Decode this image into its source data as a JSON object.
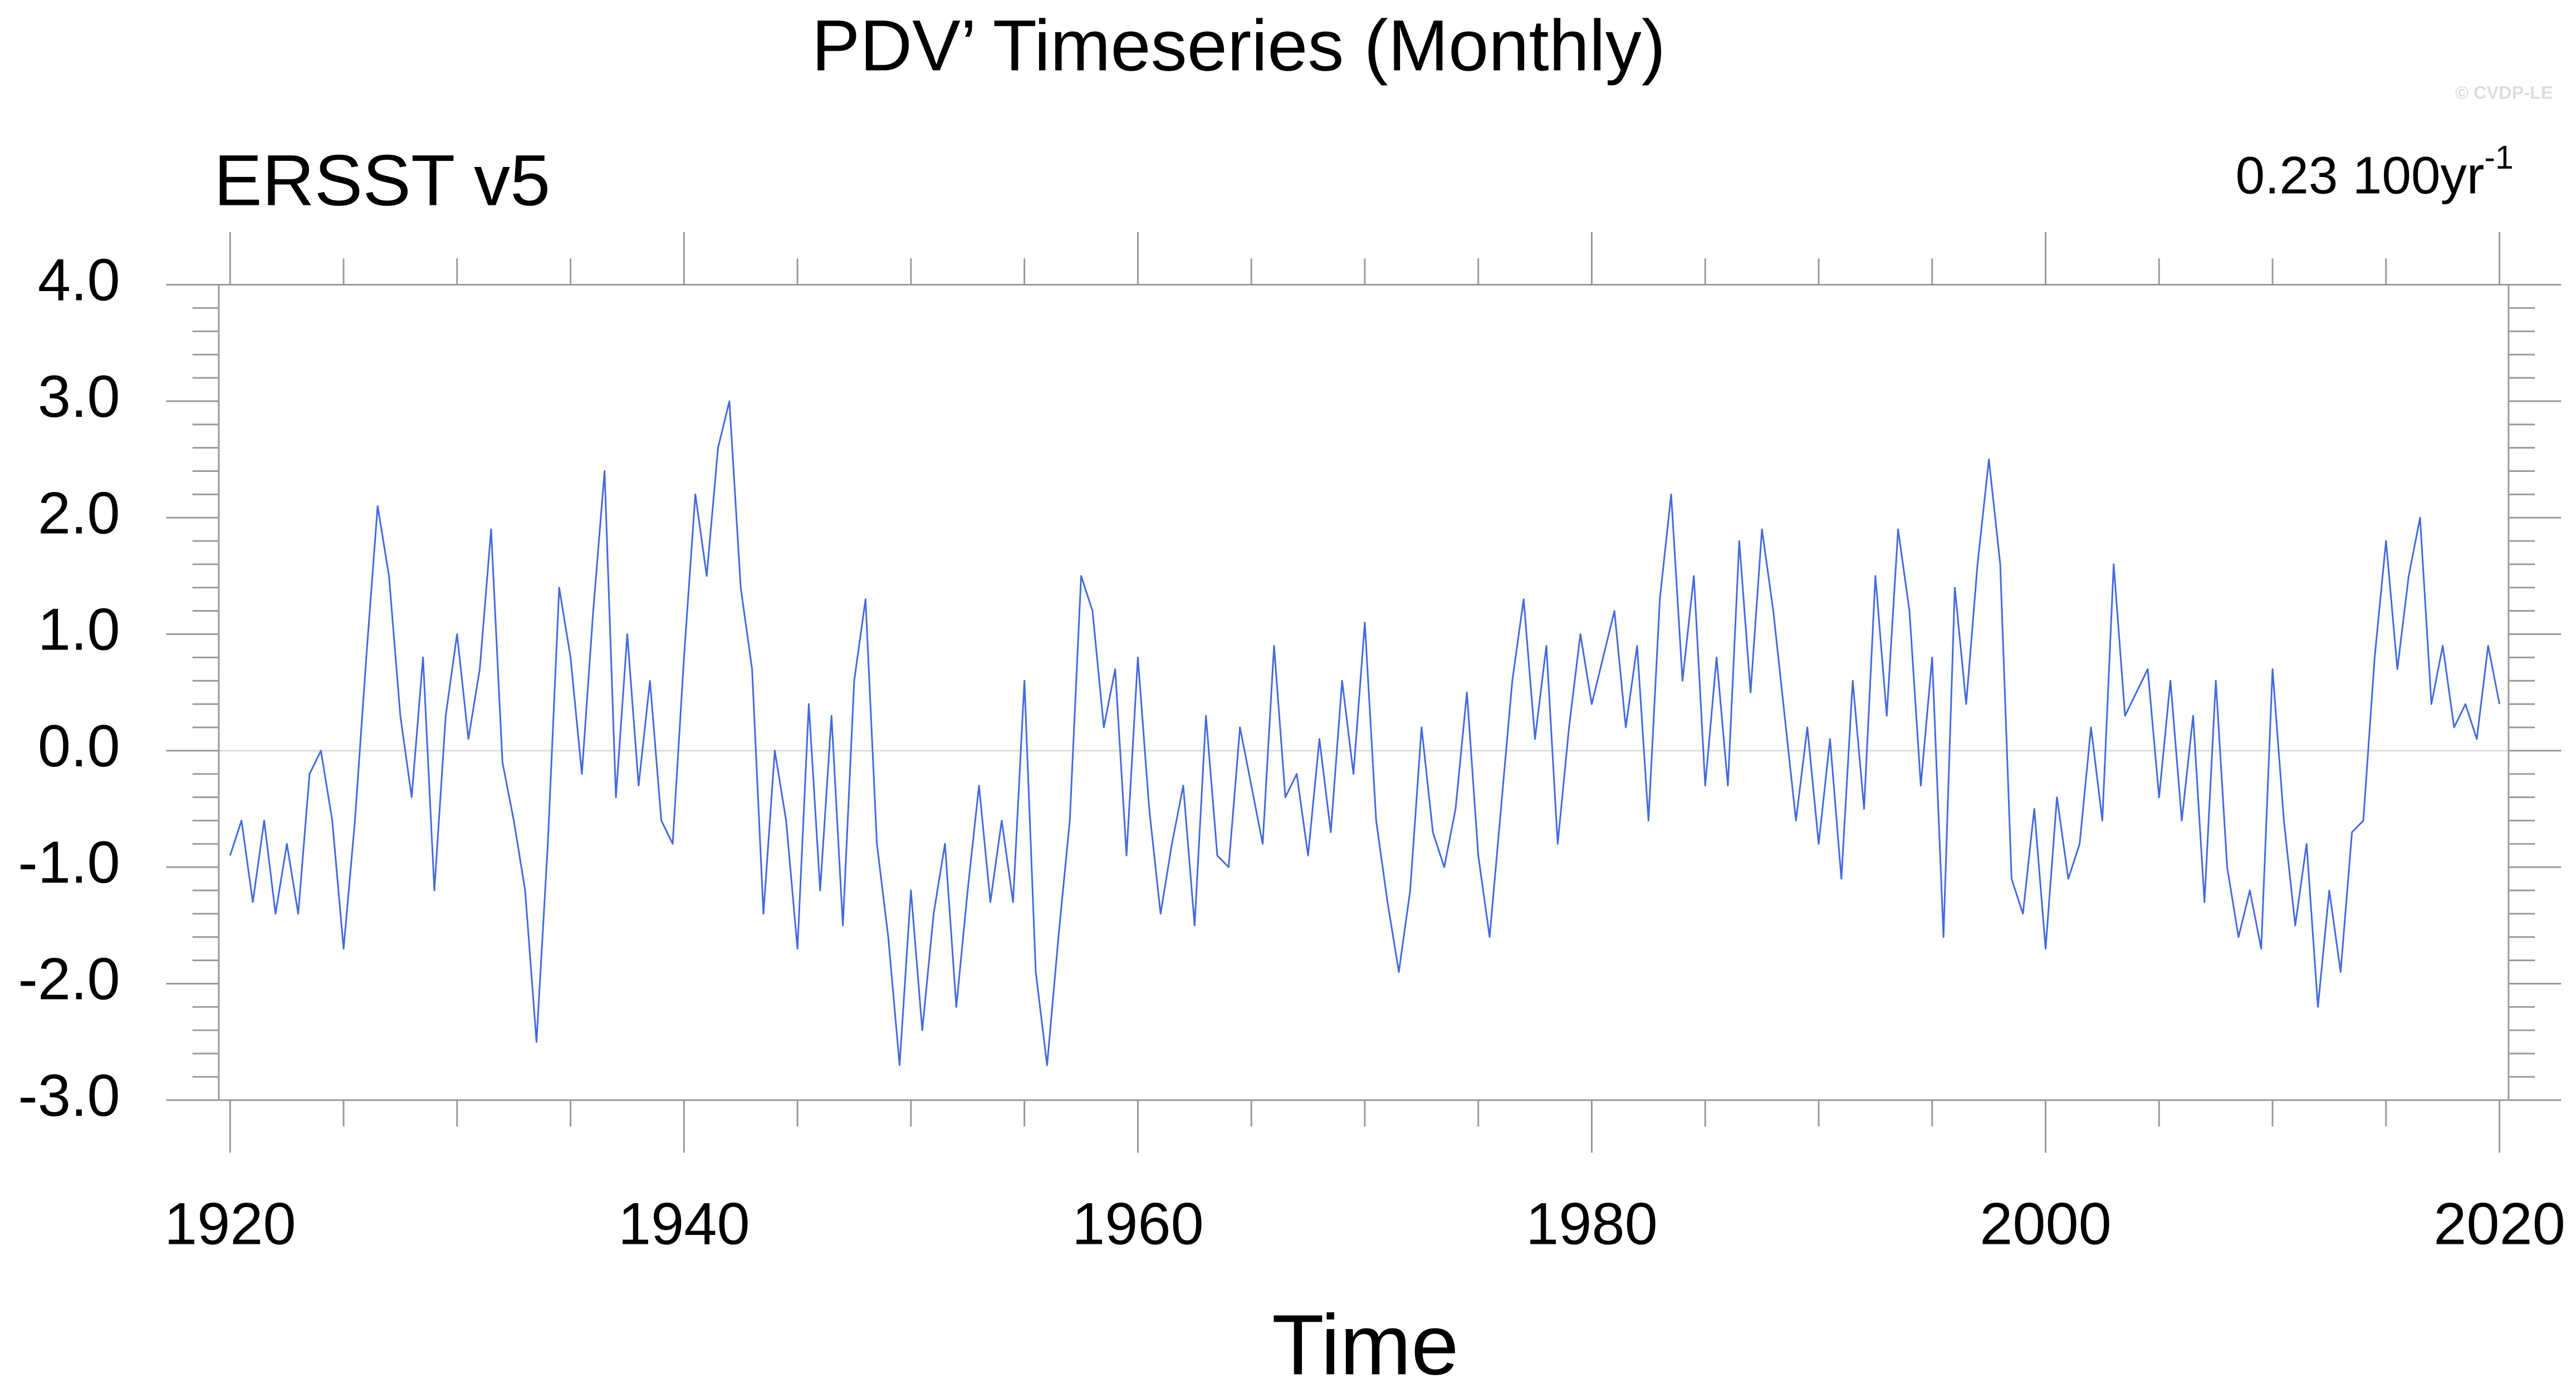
{
  "chart_data": {
    "type": "line",
    "title": "PDV’ Timeseries (Monthly)",
    "subtitle": "ERSST v5",
    "trend_label": "0.23 100yr",
    "trend_label_superscript": "-1",
    "copyright": "© CVDP-LE",
    "xlabel": "Time",
    "color": "#4169e1",
    "zero_line": true,
    "xlim": [
      1919.5,
      2020.4
    ],
    "ylim": [
      -3,
      4
    ],
    "xticks": [
      1920,
      1940,
      1960,
      1980,
      2000,
      2020
    ],
    "x_minor_ticks": [
      1925,
      1930,
      1935,
      1945,
      1950,
      1955,
      1965,
      1970,
      1975,
      1985,
      1990,
      1995,
      2005,
      2010,
      2015
    ],
    "yticks": [
      {
        "value": -3,
        "label": "-3.0"
      },
      {
        "value": -2,
        "label": "-2.0"
      },
      {
        "value": -1,
        "label": "-1.0"
      },
      {
        "value": 0,
        "label": "0.0"
      },
      {
        "value": 1,
        "label": "1.0"
      },
      {
        "value": 2,
        "label": "2.0"
      },
      {
        "value": 3,
        "label": "3.0"
      },
      {
        "value": 4,
        "label": "4.0"
      }
    ],
    "y_minor_ticks": [
      -2.8,
      -2.6,
      -2.4,
      -2.2,
      -1.8,
      -1.6,
      -1.4,
      -1.2,
      -0.8,
      -0.6,
      -0.4,
      -0.2,
      0.2,
      0.4,
      0.6,
      0.8,
      1.2,
      1.4,
      1.6,
      1.8,
      2.2,
      2.4,
      2.6,
      2.8,
      3.2,
      3.4,
      3.6,
      3.8
    ],
    "x": [
      1920,
      1920.5,
      1921,
      1921.5,
      1922,
      1922.5,
      1923,
      1923.5,
      1924,
      1924.5,
      1925,
      1925.5,
      1926,
      1926.5,
      1927,
      1927.5,
      1928,
      1928.5,
      1929,
      1929.5,
      1930,
      1930.5,
      1931,
      1931.5,
      1932,
      1932.5,
      1933,
      1933.5,
      1934,
      1934.5,
      1935,
      1935.5,
      1936,
      1936.5,
      1937,
      1937.5,
      1938,
      1938.5,
      1939,
      1939.5,
      1940,
      1940.5,
      1941,
      1941.5,
      1942,
      1942.5,
      1943,
      1943.5,
      1944,
      1944.5,
      1945,
      1945.5,
      1946,
      1946.5,
      1947,
      1947.5,
      1948,
      1948.5,
      1949,
      1949.5,
      1950,
      1950.5,
      1951,
      1951.5,
      1952,
      1952.5,
      1953,
      1953.5,
      1954,
      1954.5,
      1955,
      1955.5,
      1956,
      1956.5,
      1957,
      1957.5,
      1958,
      1958.5,
      1959,
      1959.5,
      1960,
      1960.5,
      1961,
      1961.5,
      1962,
      1962.5,
      1963,
      1963.5,
      1964,
      1964.5,
      1965,
      1965.5,
      1966,
      1966.5,
      1967,
      1967.5,
      1968,
      1968.5,
      1969,
      1969.5,
      1970,
      1970.5,
      1971,
      1971.5,
      1972,
      1972.5,
      1973,
      1973.5,
      1974,
      1974.5,
      1975,
      1975.5,
      1976,
      1976.5,
      1977,
      1977.5,
      1978,
      1978.5,
      1979,
      1979.5,
      1980,
      1980.5,
      1981,
      1981.5,
      1982,
      1982.5,
      1983,
      1983.5,
      1984,
      1984.5,
      1985,
      1985.5,
      1986,
      1986.5,
      1987,
      1987.5,
      1988,
      1988.5,
      1989,
      1989.5,
      1990,
      1990.5,
      1991,
      1991.5,
      1992,
      1992.5,
      1993,
      1993.5,
      1994,
      1994.5,
      1995,
      1995.5,
      1996,
      1996.5,
      1997,
      1997.5,
      1998,
      1998.5,
      1999,
      1999.5,
      2000,
      2000.5,
      2001,
      2001.5,
      2002,
      2002.5,
      2003,
      2003.5,
      2004,
      2004.5,
      2005,
      2005.5,
      2006,
      2006.5,
      2007,
      2007.5,
      2008,
      2008.5,
      2009,
      2009.5,
      2010,
      2010.5,
      2011,
      2011.5,
      2012,
      2012.5,
      2013,
      2013.5,
      2014,
      2014.5,
      2015,
      2015.5,
      2016,
      2016.5,
      2017,
      2017.5,
      2018,
      2018.5,
      2019,
      2019.5,
      2020
    ],
    "values": [
      -0.9,
      -0.6,
      -1.3,
      -0.6,
      -1.4,
      -0.8,
      -1.4,
      -0.2,
      0.0,
      -0.6,
      -1.7,
      -0.6,
      0.8,
      2.1,
      1.5,
      0.3,
      -0.4,
      0.8,
      -1.2,
      0.3,
      1.0,
      0.1,
      0.7,
      1.9,
      -0.1,
      -0.6,
      -1.2,
      -2.5,
      -0.8,
      1.4,
      0.8,
      -0.2,
      1.2,
      2.4,
      -0.4,
      1.0,
      -0.3,
      0.6,
      -0.6,
      -0.8,
      0.8,
      2.2,
      1.5,
      2.6,
      3.0,
      1.4,
      0.7,
      -1.4,
      0.0,
      -0.6,
      -1.7,
      0.4,
      -1.2,
      0.3,
      -1.5,
      0.6,
      1.3,
      -0.8,
      -1.6,
      -2.7,
      -1.2,
      -2.4,
      -1.4,
      -0.8,
      -2.2,
      -1.2,
      -0.3,
      -1.3,
      -0.6,
      -1.3,
      0.6,
      -1.9,
      -2.7,
      -1.6,
      -0.6,
      1.5,
      1.2,
      0.2,
      0.7,
      -0.9,
      0.8,
      -0.5,
      -1.4,
      -0.8,
      -0.3,
      -1.5,
      0.3,
      -0.9,
      -1.0,
      0.2,
      -0.3,
      -0.8,
      0.9,
      -0.4,
      -0.2,
      -0.9,
      0.1,
      -0.7,
      0.6,
      -0.2,
      1.1,
      -0.6,
      -1.3,
      -1.9,
      -1.2,
      0.2,
      -0.7,
      -1.0,
      -0.5,
      0.5,
      -0.9,
      -1.6,
      -0.5,
      0.6,
      1.3,
      0.1,
      0.9,
      -0.8,
      0.2,
      1.0,
      0.4,
      0.8,
      1.2,
      0.2,
      0.9,
      -0.6,
      1.3,
      2.2,
      0.6,
      1.5,
      -0.3,
      0.8,
      -0.3,
      1.8,
      0.5,
      1.9,
      1.2,
      0.3,
      -0.6,
      0.2,
      -0.8,
      0.1,
      -1.1,
      0.6,
      -0.5,
      1.5,
      0.3,
      1.9,
      1.2,
      -0.3,
      0.8,
      -1.6,
      1.4,
      0.4,
      1.6,
      2.5,
      1.6,
      -1.1,
      -1.4,
      -0.5,
      -1.7,
      -0.4,
      -1.1,
      -0.8,
      0.2,
      -0.6,
      1.6,
      0.3,
      0.5,
      0.7,
      -0.4,
      0.6,
      -0.6,
      0.3,
      -1.3,
      0.6,
      -1.0,
      -1.6,
      -1.2,
      -1.7,
      0.7,
      -0.6,
      -1.5,
      -0.8,
      -2.2,
      -1.2,
      -1.9,
      -0.7,
      -0.6,
      0.8,
      1.8,
      0.7,
      1.5,
      2.0,
      0.4,
      0.9,
      0.2,
      0.4,
      0.1,
      0.9,
      0.4
    ]
  }
}
